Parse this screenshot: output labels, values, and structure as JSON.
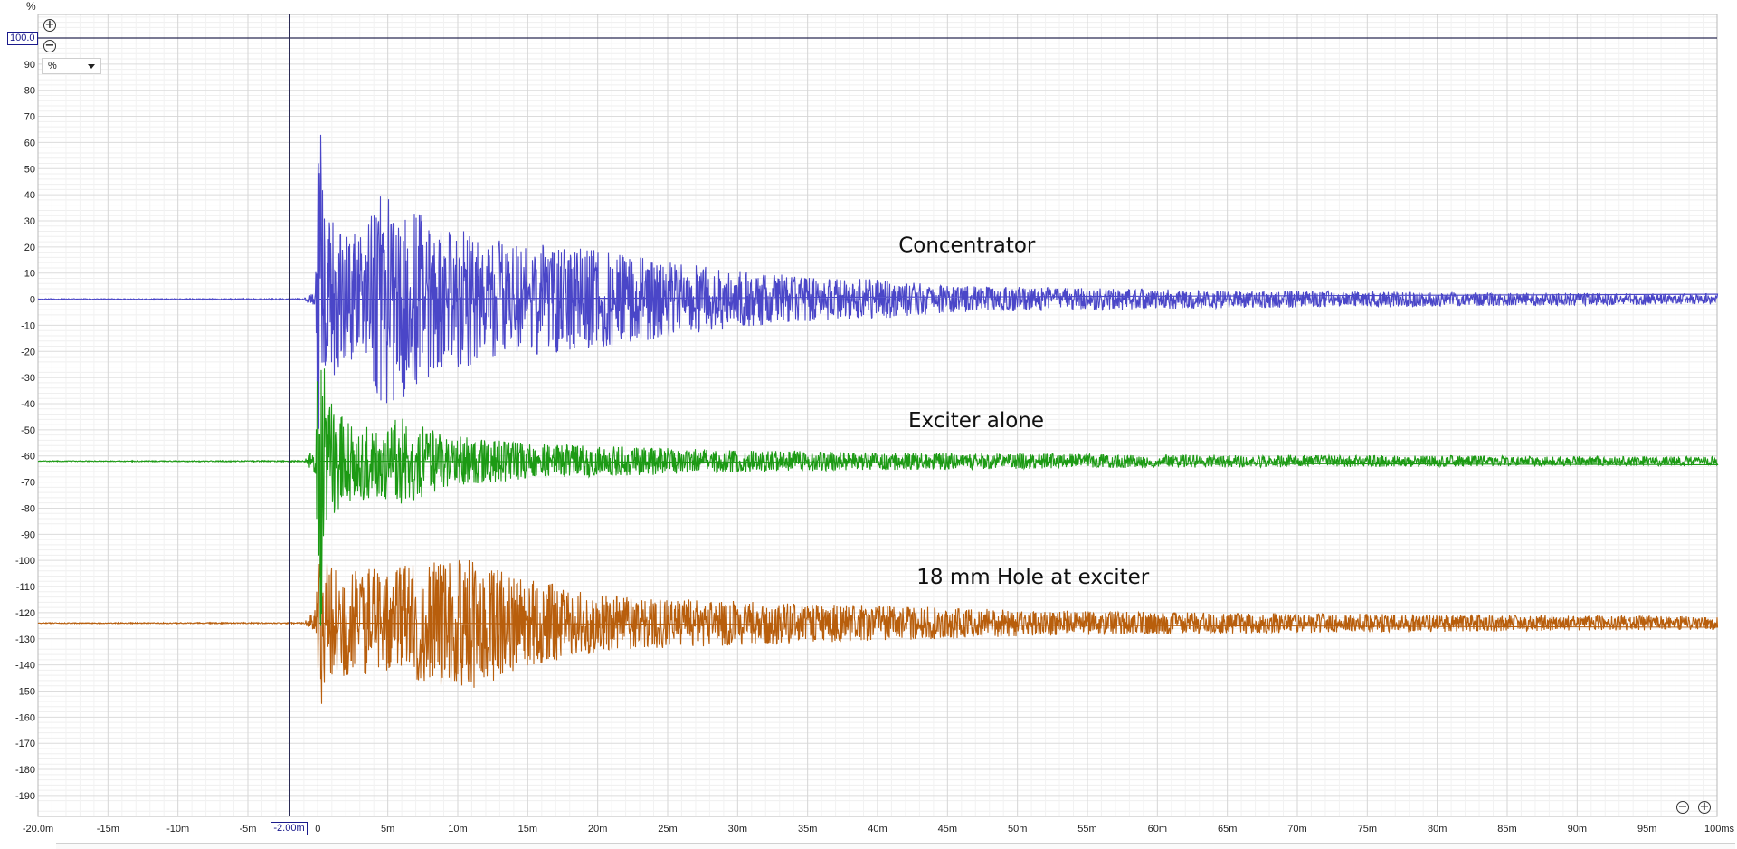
{
  "chart_data": {
    "type": "line",
    "y_unit": "%",
    "x_unit": "ms",
    "xlim": [
      -20,
      100
    ],
    "ylim": [
      -198,
      109
    ],
    "x_ticks": [
      {
        "v": -20,
        "label": "-20.0m"
      },
      {
        "v": -15,
        "label": "-15m"
      },
      {
        "v": -10,
        "label": "-10m"
      },
      {
        "v": -5,
        "label": "-5m"
      },
      {
        "v": 0,
        "label": "0"
      },
      {
        "v": 5,
        "label": "5m"
      },
      {
        "v": 10,
        "label": "10m"
      },
      {
        "v": 15,
        "label": "15m"
      },
      {
        "v": 20,
        "label": "20m"
      },
      {
        "v": 25,
        "label": "25m"
      },
      {
        "v": 30,
        "label": "30m"
      },
      {
        "v": 35,
        "label": "35m"
      },
      {
        "v": 40,
        "label": "40m"
      },
      {
        "v": 45,
        "label": "45m"
      },
      {
        "v": 50,
        "label": "50m"
      },
      {
        "v": 55,
        "label": "55m"
      },
      {
        "v": 60,
        "label": "60m"
      },
      {
        "v": 65,
        "label": "65m"
      },
      {
        "v": 70,
        "label": "70m"
      },
      {
        "v": 75,
        "label": "75m"
      },
      {
        "v": 80,
        "label": "80m"
      },
      {
        "v": 85,
        "label": "85m"
      },
      {
        "v": 90,
        "label": "90m"
      },
      {
        "v": 95,
        "label": "95m"
      },
      {
        "v": 100,
        "label": "100ms"
      }
    ],
    "y_ticks": [
      90,
      80,
      70,
      60,
      50,
      40,
      30,
      20,
      10,
      0,
      -10,
      -20,
      -30,
      -40,
      -50,
      -60,
      -70,
      -80,
      -90,
      -100,
      -110,
      -120,
      -130,
      -140,
      -150,
      -160,
      -170,
      -180,
      -190
    ],
    "grid": true,
    "series": [
      {
        "name": "Concentrator",
        "offset": 0,
        "color": "#4a46c8",
        "env": [
          [
            -20,
            0.2
          ],
          [
            -1,
            0.3
          ],
          [
            -0.2,
            4
          ],
          [
            0.1,
            101
          ],
          [
            0.4,
            38
          ],
          [
            1.5,
            33
          ],
          [
            3,
            30
          ],
          [
            4.8,
            52
          ],
          [
            7,
            40
          ],
          [
            9,
            34
          ],
          [
            12,
            27
          ],
          [
            16,
            25
          ],
          [
            20,
            22
          ],
          [
            25,
            17
          ],
          [
            30,
            13
          ],
          [
            35,
            10
          ],
          [
            40,
            9
          ],
          [
            45,
            6
          ],
          [
            55,
            5
          ],
          [
            65,
            4
          ],
          [
            75,
            3.5
          ],
          [
            85,
            3
          ],
          [
            100,
            2.5
          ]
        ]
      },
      {
        "name": "Exciter alone",
        "offset": -62,
        "color": "#1c9a14",
        "env": [
          [
            -20,
            0.2
          ],
          [
            -1,
            0.3
          ],
          [
            -0.2,
            6
          ],
          [
            0.1,
            100
          ],
          [
            0.5,
            30
          ],
          [
            2,
            18
          ],
          [
            4,
            17
          ],
          [
            6,
            20
          ],
          [
            9,
            12
          ],
          [
            15,
            8
          ],
          [
            20,
            7
          ],
          [
            25,
            6
          ],
          [
            30,
            5
          ],
          [
            40,
            4
          ],
          [
            60,
            3
          ],
          [
            80,
            2.5
          ],
          [
            100,
            2
          ]
        ]
      },
      {
        "name": "18 mm Hole at exciter",
        "offset": -124,
        "color": "#b85e0c",
        "env": [
          [
            -20,
            0.2
          ],
          [
            -1,
            0.3
          ],
          [
            -0.2,
            6
          ],
          [
            0.2,
            38
          ],
          [
            0.8,
            26
          ],
          [
            2,
            24
          ],
          [
            5,
            25
          ],
          [
            9,
            28
          ],
          [
            11,
            30
          ],
          [
            15,
            20
          ],
          [
            20,
            13
          ],
          [
            25,
            11
          ],
          [
            30,
            10
          ],
          [
            35,
            9
          ],
          [
            40,
            8
          ],
          [
            50,
            6
          ],
          [
            60,
            5
          ],
          [
            80,
            4
          ],
          [
            100,
            3
          ]
        ]
      }
    ],
    "annotations": [
      {
        "text": "Concentrator",
        "x": 41.5,
        "y": 18
      },
      {
        "text": "Exciter alone",
        "x": 42.2,
        "y": -49
      },
      {
        "text": "18 mm Hole at exciter",
        "x": 42.8,
        "y": -109
      }
    ],
    "horizontal_cursor": {
      "value": 100.0,
      "label": "100.0"
    },
    "vertical_cursor": {
      "value": -2.0,
      "label": "-2.00m"
    },
    "unit_selector": {
      "selected": "%"
    }
  }
}
